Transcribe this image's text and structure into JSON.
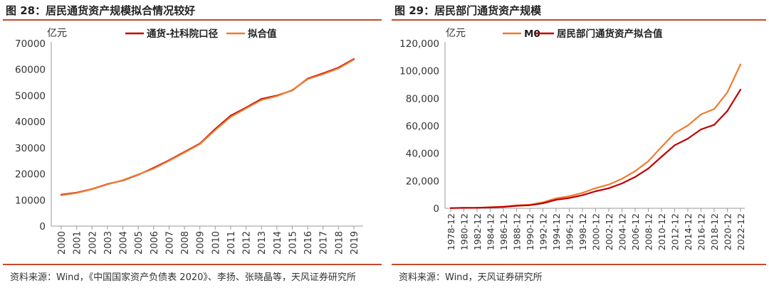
{
  "left": {
    "title": "图 28：居民通货资产规模拟合情况较好",
    "source": "资料来源：Wind，《中国国家资产负债表 2020》、李扬、张晓晶等，天风证券研究所"
  },
  "right": {
    "title": "图 29：居民部门通货资产规模",
    "source": "资料来源：Wind，天风证券研究所"
  },
  "colors": {
    "red": "#c00000",
    "orange": "#ed7d31",
    "rule": "#c8492a",
    "axis": "#999999"
  },
  "chart_data": [
    {
      "type": "line",
      "unit_label": "亿元",
      "categories": [
        "2000",
        "2001",
        "2002",
        "2003",
        "2004",
        "2005",
        "2006",
        "2007",
        "2008",
        "2009",
        "2010",
        "2011",
        "2012",
        "2013",
        "2014",
        "2015",
        "2016",
        "2017",
        "2018",
        "2019"
      ],
      "ylim": [
        0,
        70000
      ],
      "yticks": [
        "0",
        "10000",
        "20000",
        "30000",
        "40000",
        "50000",
        "60000",
        "70000"
      ],
      "legend_position": "top",
      "series": [
        {
          "name": "通货-社科院口径",
          "color": "#c00000",
          "values": [
            12000,
            12800,
            14200,
            16100,
            17500,
            19700,
            22300,
            25200,
            28400,
            31600,
            37200,
            42300,
            45400,
            48700,
            50000,
            52000,
            56500,
            58500,
            60700,
            64000
          ]
        },
        {
          "name": "拟合值",
          "color": "#ed7d31",
          "values": [
            11800,
            12700,
            14100,
            16000,
            17600,
            19800,
            22000,
            25000,
            28200,
            31400,
            36800,
            41800,
            45100,
            48300,
            49800,
            52100,
            56300,
            58200,
            60400,
            63800
          ]
        }
      ]
    },
    {
      "type": "line",
      "unit_label": "亿元",
      "categories": [
        "1978-12",
        "1980-12",
        "1982-12",
        "1984-12",
        "1986-12",
        "1988-12",
        "1990-12",
        "1992-12",
        "1994-12",
        "1996-12",
        "1998-12",
        "2000-12",
        "2002-12",
        "2004-12",
        "2006-12",
        "2008-12",
        "2010-12",
        "2012-12",
        "2014-12",
        "2016-12",
        "2018-12",
        "2020-12",
        "2022-12"
      ],
      "ylim": [
        0,
        120000
      ],
      "yticks": [
        "0",
        "20,000",
        "40,000",
        "60,000",
        "80,000",
        "100,000",
        "120,000"
      ],
      "legend_position": "top",
      "series": [
        {
          "name": "M0",
          "color": "#ed7d31",
          "values": [
            212,
            346,
            439,
            792,
            1218,
            2134,
            2644,
            4336,
            7289,
            8802,
            11204,
            14653,
            17278,
            21468,
            27073,
            34219,
            44628,
            54660,
            60260,
            68304,
            72210,
            84315,
            104707
          ]
        },
        {
          "name": "居民部门通货资产拟合值",
          "color": "#c00000",
          "values": [
            180,
            290,
            370,
            660,
            1030,
            1800,
            2240,
            3680,
            6200,
            7480,
            9500,
            12400,
            14600,
            18100,
            22800,
            28900,
            37500,
            45900,
            50700,
            57400,
            60700,
            70800,
            86400
          ]
        }
      ]
    }
  ]
}
